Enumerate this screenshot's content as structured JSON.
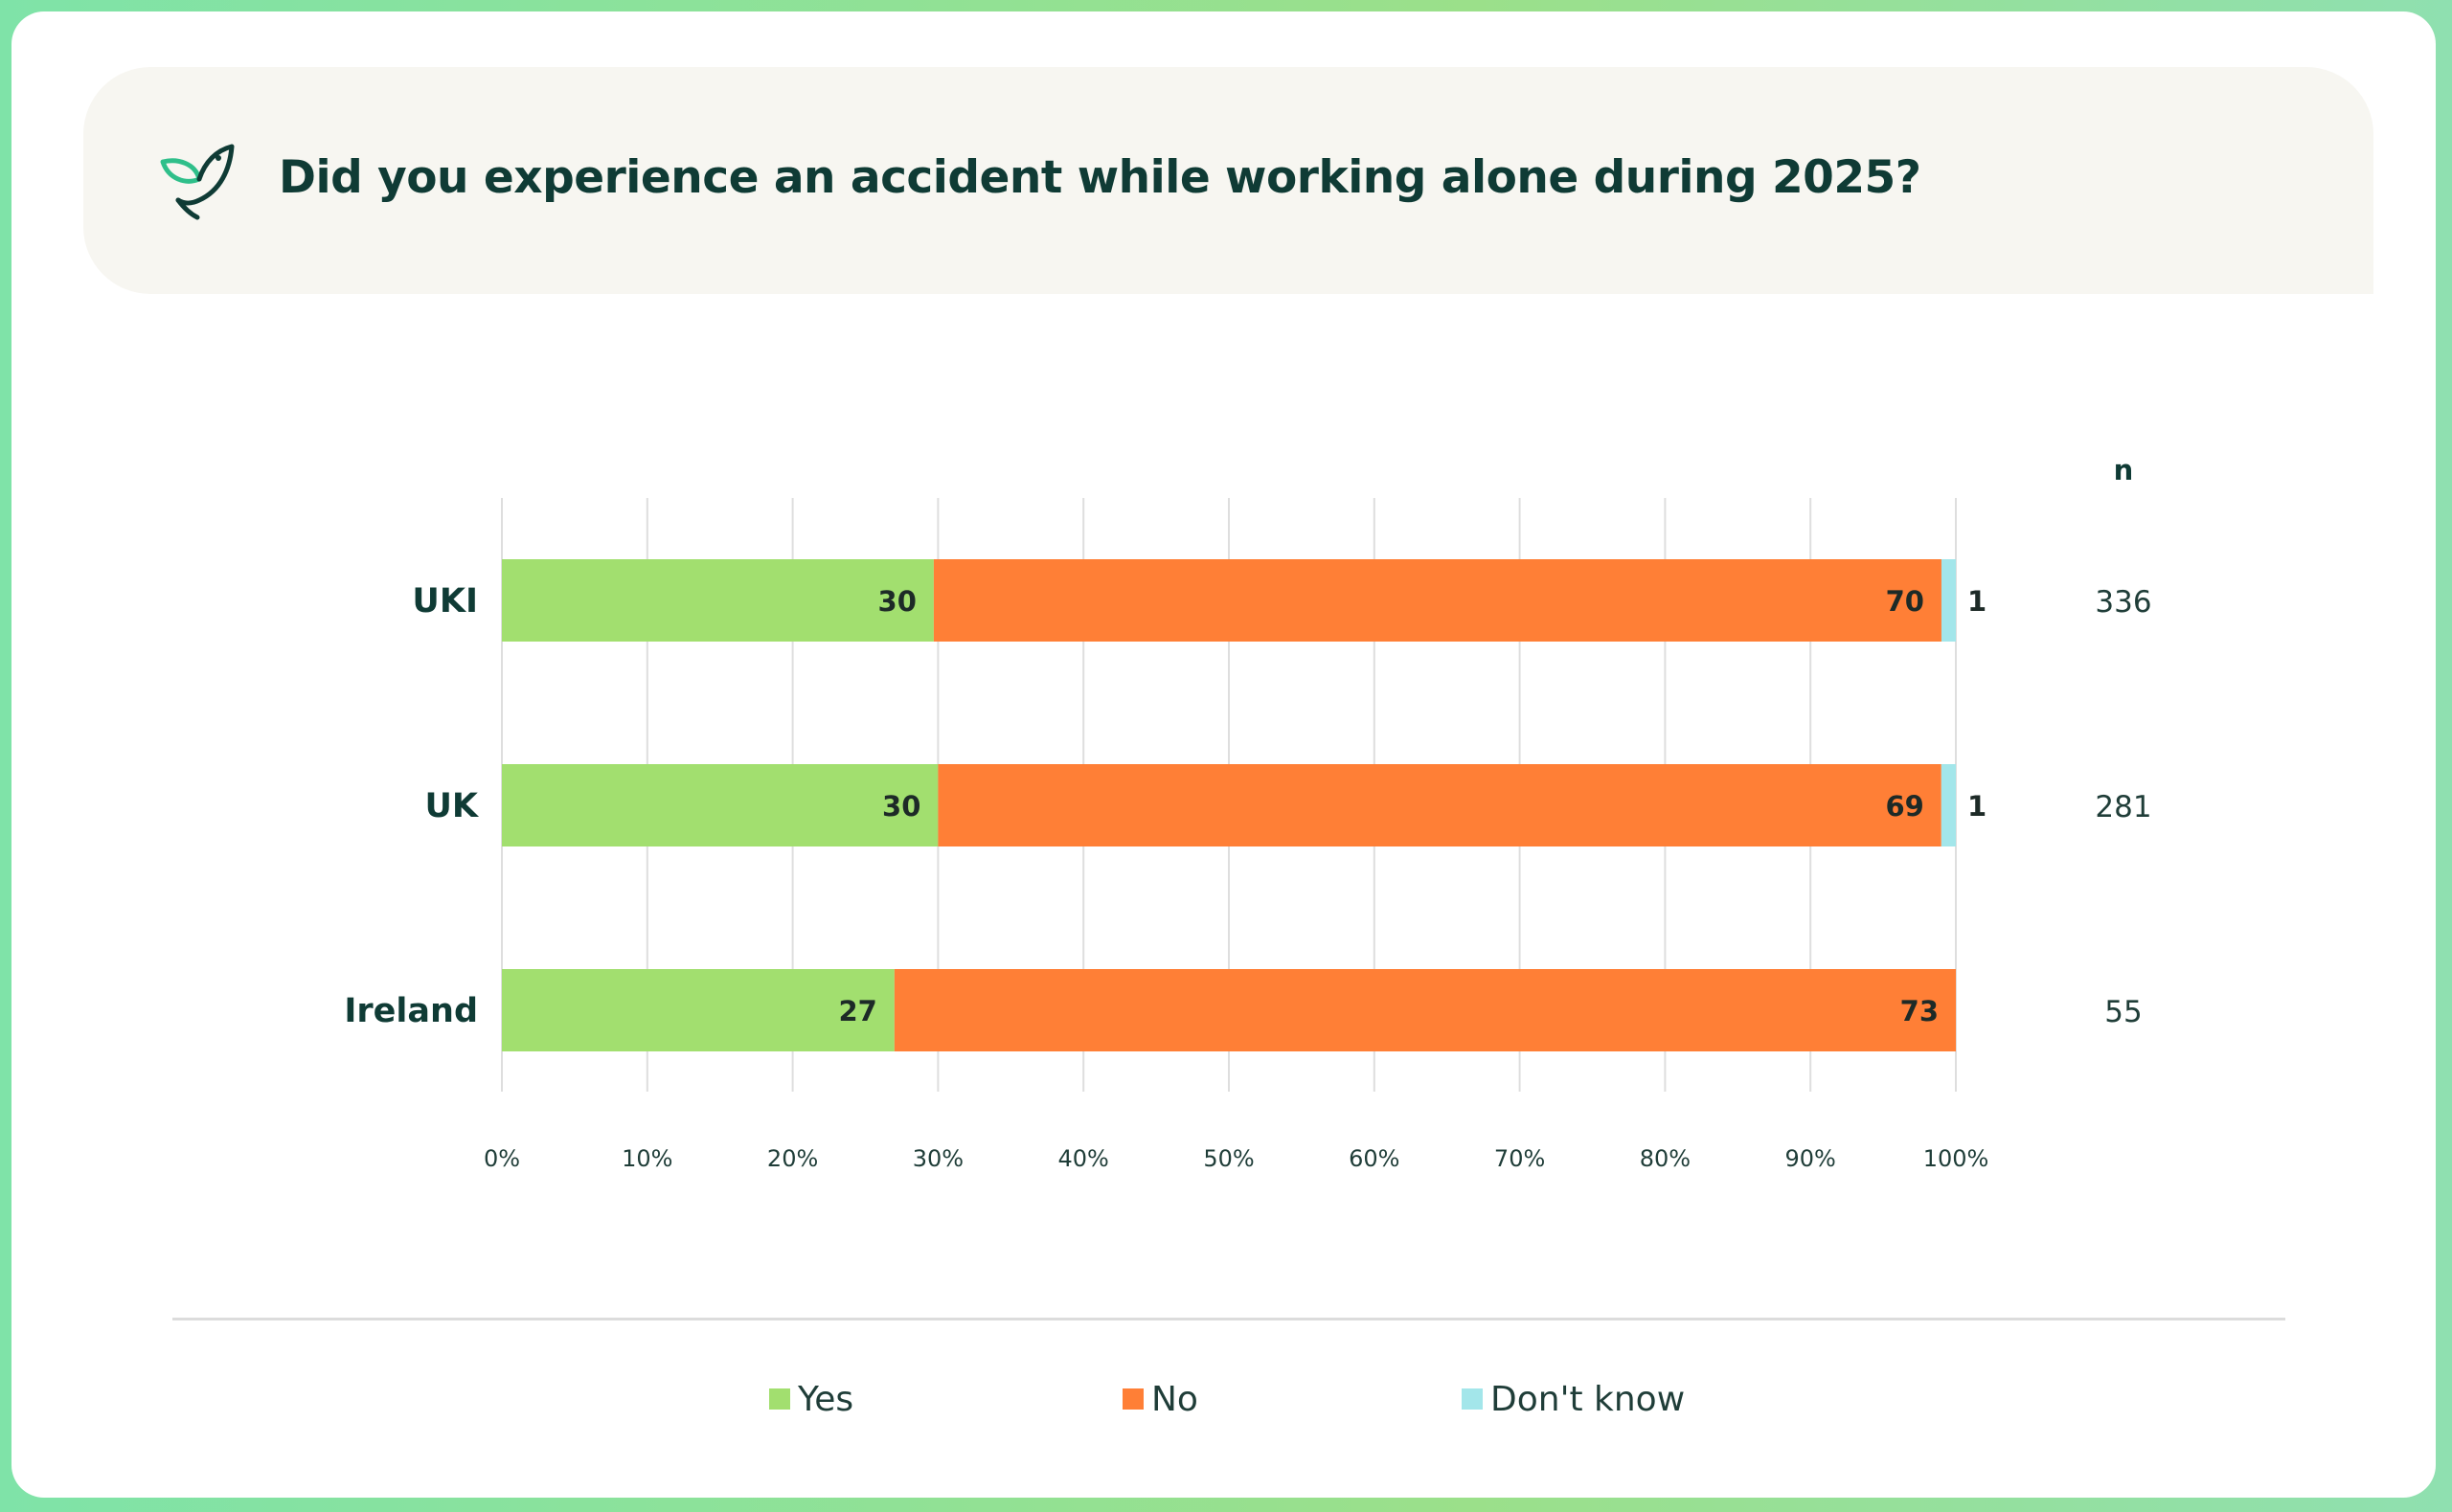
{
  "header": {
    "title": "Did you experience an accident while working alone during 2025?",
    "icon": "bird-logo-icon"
  },
  "colors": {
    "yes": "#a2df6f",
    "no": "#ff7f36",
    "dont_know": "#a3e6ea",
    "text": "#0f3b35",
    "accent": "#2fbf8a"
  },
  "chart_data": {
    "type": "bar",
    "orientation": "horizontal",
    "stacked": true,
    "title": "Did you experience an accident while working alone during 2025?",
    "categories": [
      "UKI",
      "UK",
      "Ireland"
    ],
    "series": [
      {
        "name": "Yes",
        "values": [
          30,
          30,
          27
        ],
        "labels": [
          "30",
          "30",
          "27"
        ]
      },
      {
        "name": "No",
        "values": [
          70,
          69,
          73
        ],
        "labels": [
          "70",
          "69",
          "73"
        ]
      },
      {
        "name": "Don't know",
        "values": [
          1,
          1,
          0
        ],
        "labels": [
          "1",
          "1",
          ""
        ]
      }
    ],
    "n_header": "n",
    "n_values": [
      "336",
      "281",
      "55"
    ],
    "xlim": [
      0,
      100
    ],
    "x_ticks": [
      "0%",
      "10%",
      "20%",
      "30%",
      "40%",
      "50%",
      "60%",
      "70%",
      "80%",
      "90%",
      "100%"
    ],
    "grid": true,
    "legend_position": "bottom"
  },
  "legend": {
    "items": [
      {
        "label": "Yes"
      },
      {
        "label": "No"
      },
      {
        "label": "Don't know"
      }
    ]
  }
}
